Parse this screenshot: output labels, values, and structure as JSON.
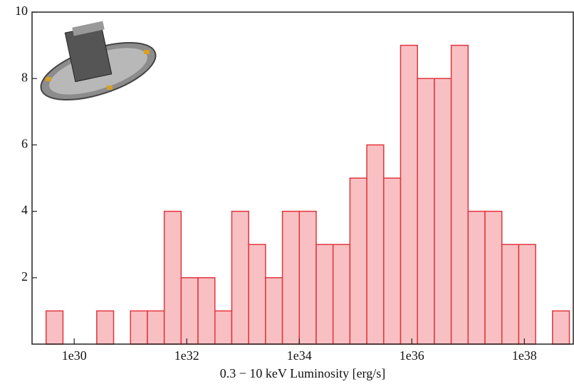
{
  "chart_data": {
    "type": "histogram",
    "xlabel": "0.3 − 10 keV Luminosity [erg/s]",
    "bins": [
      3.162e+29,
      6.31e+29,
      1.259e+30,
      2.512e+30,
      5.012e+30,
      1e+31,
      1.995e+31,
      3.981e+31,
      7.943e+31,
      1.585e+32,
      3.162e+32,
      6.31e+32,
      1.259e+33,
      2.512e+33,
      5.012e+33,
      1e+34,
      1.995e+34,
      3.981e+34,
      7.943e+34,
      1.585e+35,
      3.162e+35,
      6.31e+35,
      1.259e+36,
      2.512e+36,
      5.012e+36,
      1e+37,
      1.995e+37,
      3.981e+37,
      7.943e+37,
      1.585e+38,
      3.162e+38,
      6.31e+38
    ],
    "values": [
      1,
      0,
      0,
      1,
      0,
      1,
      1,
      4,
      2,
      2,
      1,
      4,
      3,
      2,
      4,
      4,
      3,
      3,
      5,
      6,
      5,
      9,
      8,
      8,
      9,
      4,
      4,
      3,
      3,
      0,
      1
    ],
    "color": "#f9c0c3",
    "edgecolor": "#e0353c",
    "xscale": "log",
    "xlim": [
      1.78e+29,
      7.4e+38
    ],
    "xticks": [
      {
        "value": 1e+30,
        "label": "1e30"
      },
      {
        "value": 1e+32,
        "label": "1e32"
      },
      {
        "value": 1e+34,
        "label": "1e34"
      },
      {
        "value": 1e+36,
        "label": "1e36"
      },
      {
        "value": 1e+38,
        "label": "1e38"
      }
    ],
    "ylim": [
      0,
      10
    ],
    "yticks": [
      2,
      4,
      6,
      8,
      10
    ]
  }
}
